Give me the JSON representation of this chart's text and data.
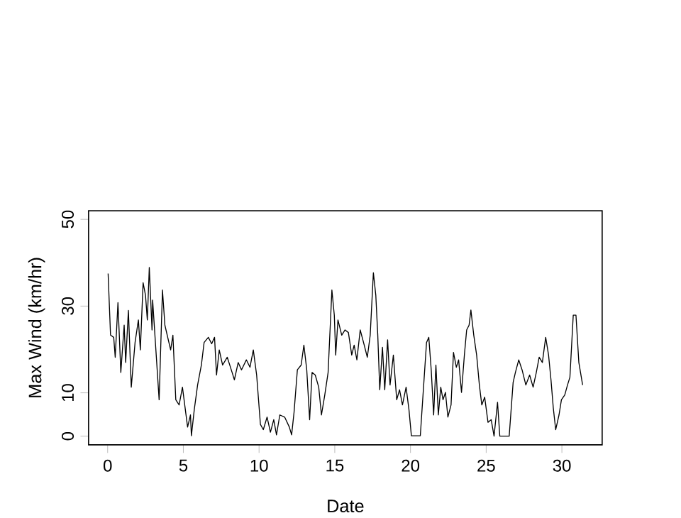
{
  "chart_data": {
    "type": "line",
    "xlabel": "Date",
    "ylabel": "Max Wind (km/hr)",
    "xlim": [
      -1.26,
      32.66
    ],
    "ylim": [
      -2,
      52
    ],
    "xticks": [
      0,
      5,
      10,
      15,
      20,
      25,
      30
    ],
    "yticks": [
      0,
      10,
      30,
      50
    ],
    "marker": "none",
    "line_style": "solid",
    "series": [
      {
        "color": "#000000",
        "x": [
          0.03,
          0.19,
          0.4,
          0.5,
          0.68,
          0.87,
          1.09,
          1.19,
          1.37,
          1.56,
          1.81,
          2.03,
          2.16,
          2.34,
          2.5,
          2.62,
          2.75,
          2.93,
          2.97,
          3.4,
          3.62,
          3.78,
          4.16,
          4.31,
          4.5,
          4.72,
          4.94,
          5.09,
          5.28,
          5.47,
          5.53,
          5.72,
          5.94,
          6.19,
          6.37,
          6.65,
          6.87,
          7.06,
          7.19,
          7.37,
          7.59,
          7.9,
          8.22,
          8.37,
          8.62,
          8.84,
          9.16,
          9.4,
          9.62,
          9.84,
          10.09,
          10.28,
          10.53,
          10.75,
          10.97,
          11.15,
          11.37,
          11.69,
          12,
          12.15,
          12.31,
          12.53,
          12.78,
          12.96,
          13.15,
          13.34,
          13.5,
          13.71,
          13.94,
          14.12,
          14.34,
          14.56,
          14.81,
          14.97,
          15.06,
          15.21,
          15.46,
          15.68,
          15.9,
          16.12,
          16.28,
          16.46,
          16.68,
          16.9,
          17.15,
          17.34,
          17.55,
          17.71,
          17.84,
          17.97,
          18.15,
          18.3,
          18.49,
          18.65,
          18.87,
          19.09,
          19.28,
          19.47,
          19.71,
          19.9,
          20.06,
          20.65,
          20.74,
          21.06,
          21.21,
          21.37,
          21.53,
          21.68,
          21.84,
          22,
          22.15,
          22.31,
          22.47,
          22.68,
          22.84,
          23.03,
          23.18,
          23.37,
          23.56,
          23.71,
          23.87,
          23.99,
          24.18,
          24.37,
          24.55,
          24.71,
          24.9,
          25.12,
          25.33,
          25.52,
          25.75,
          25.9,
          26.52,
          26.78,
          26.93,
          27.15,
          27.37,
          27.62,
          27.87,
          28.1,
          28.31,
          28.5,
          28.71,
          28.93,
          29.12,
          29.28,
          29.43,
          29.59,
          29.81,
          29.97,
          30.19,
          30.37,
          30.53,
          30.75,
          30.93,
          31.12,
          31.37
        ],
        "values": [
          37.5,
          23.3,
          22.8,
          18.2,
          30.8,
          14.7,
          25.6,
          17,
          29,
          11.3,
          21.6,
          26.8,
          19.9,
          35.4,
          32.5,
          26.8,
          38.9,
          24.5,
          31.4,
          8.4,
          33.7,
          25.6,
          19.9,
          23.3,
          8.4,
          7.2,
          11.3,
          7.2,
          2.1,
          4.9,
          0.1,
          6.1,
          11.8,
          16.4,
          21.6,
          22.8,
          21.3,
          22.8,
          14.1,
          19.9,
          16.4,
          18.2,
          14.7,
          13,
          17,
          15.3,
          17.6,
          15.9,
          19.9,
          14.1,
          2.7,
          1.5,
          4.4,
          0.9,
          3.8,
          0.3,
          4.9,
          4.4,
          2.1,
          0.3,
          5.5,
          15.3,
          16.4,
          21,
          15.3,
          3.8,
          14.7,
          14.1,
          11.3,
          4.9,
          9.5,
          14.7,
          33.7,
          27.9,
          18.7,
          26.8,
          23.3,
          24.5,
          23.9,
          18.7,
          21,
          17.6,
          24.5,
          21.6,
          18.2,
          23.3,
          37.7,
          32.5,
          23.3,
          10.7,
          20.5,
          10.7,
          22.2,
          11.8,
          18.7,
          8.4,
          10.7,
          7.2,
          11.3,
          6.1,
          0.1,
          0.1,
          4.9,
          21.6,
          22.8,
          15.3,
          4.9,
          16.4,
          4.9,
          11.3,
          8.4,
          10.1,
          4.4,
          7.2,
          19.3,
          15.9,
          17.6,
          10.1,
          18.7,
          24.5,
          25.6,
          29.1,
          23.3,
          18.7,
          11.8,
          7.2,
          9,
          3.2,
          3.8,
          0,
          7.8,
          0,
          0,
          12.4,
          14.7,
          17.6,
          15.3,
          11.8,
          14.1,
          11.3,
          14.7,
          18.2,
          17,
          22.8,
          18.7,
          13,
          6.6,
          1.5,
          4.9,
          8.4,
          9.5,
          11.8,
          13.6,
          27.9,
          27.9,
          17,
          11.8
        ]
      }
    ]
  }
}
